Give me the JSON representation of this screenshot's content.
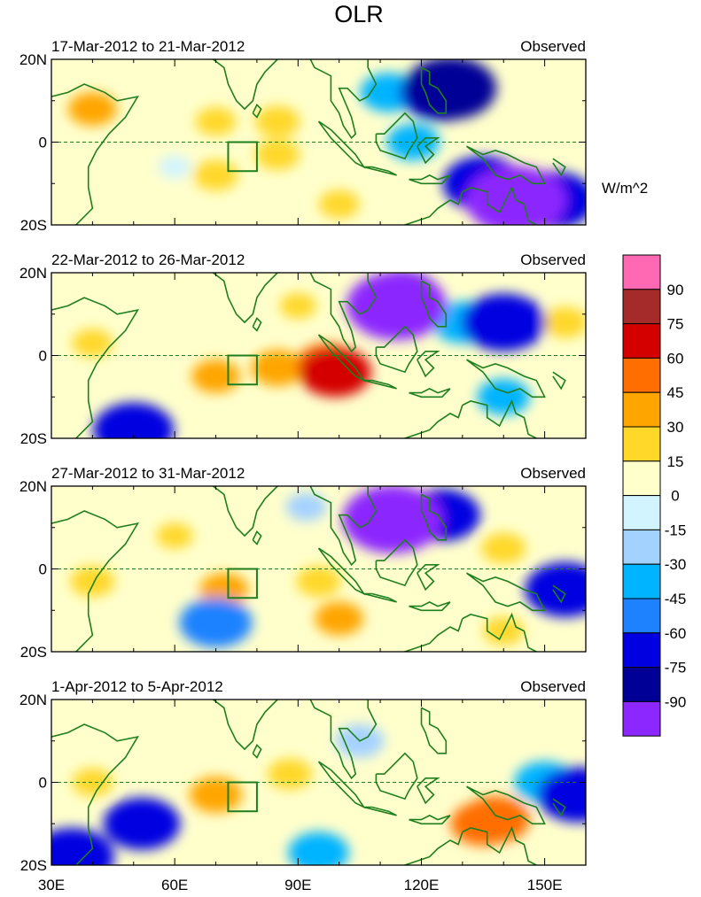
{
  "chart_data": {
    "type": "heatmap",
    "title": "OLR",
    "units": "W/m^2",
    "y_ticks": [
      "20N",
      "0",
      "20S"
    ],
    "x_ticks": [
      "30E",
      "60E",
      "90E",
      "120E",
      "150E"
    ],
    "lon_range": [
      30,
      160
    ],
    "lat_range": [
      -20,
      20
    ],
    "box_region": {
      "lon": [
        73,
        80
      ],
      "lat": [
        -7,
        0
      ]
    },
    "panels": [
      {
        "label": "17-Mar-2012 to 21-Mar-2012",
        "tag": "Observed",
        "anomalies": [
          {
            "lon": 40,
            "lat": 8,
            "value": 30
          },
          {
            "lon": 70,
            "lat": 5,
            "value": 20
          },
          {
            "lon": 85,
            "lat": 5,
            "value": 25
          },
          {
            "lon": 70,
            "lat": -8,
            "value": 25
          },
          {
            "lon": 85,
            "lat": -3,
            "value": 25
          },
          {
            "lon": 100,
            "lat": -15,
            "value": 20
          },
          {
            "lon": 60,
            "lat": -6,
            "value": -10
          },
          {
            "lon": 112,
            "lat": 12,
            "value": -40
          },
          {
            "lon": 125,
            "lat": 12,
            "value": -75
          },
          {
            "lon": 127,
            "lat": 13,
            "value": -85
          },
          {
            "lon": 118,
            "lat": 0,
            "value": -35
          },
          {
            "lon": 135,
            "lat": -10,
            "value": -70
          },
          {
            "lon": 143,
            "lat": -14,
            "value": -95
          },
          {
            "lon": 152,
            "lat": -14,
            "value": -75
          },
          {
            "lon": 150,
            "lat": 5,
            "value": 12
          }
        ]
      },
      {
        "label": "22-Mar-2012 to 26-Mar-2012",
        "tag": "Observed",
        "anomalies": [
          {
            "lon": 40,
            "lat": 3,
            "value": 20
          },
          {
            "lon": 70,
            "lat": -5,
            "value": 30
          },
          {
            "lon": 85,
            "lat": -3,
            "value": 35
          },
          {
            "lon": 97,
            "lat": -2,
            "value": 45
          },
          {
            "lon": 99,
            "lat": -4,
            "value": 60
          },
          {
            "lon": 90,
            "lat": 12,
            "value": 15
          },
          {
            "lon": 50,
            "lat": -18,
            "value": -70
          },
          {
            "lon": 115,
            "lat": 14,
            "value": -70
          },
          {
            "lon": 114,
            "lat": 12,
            "value": -95
          },
          {
            "lon": 130,
            "lat": 8,
            "value": -45
          },
          {
            "lon": 140,
            "lat": 8,
            "value": -75
          },
          {
            "lon": 140,
            "lat": -10,
            "value": -35
          },
          {
            "lon": 155,
            "lat": 8,
            "value": 25
          }
        ]
      },
      {
        "label": "27-Mar-2012 to 31-Mar-2012",
        "tag": "Observed",
        "anomalies": [
          {
            "lon": 40,
            "lat": -3,
            "value": 25
          },
          {
            "lon": 60,
            "lat": 8,
            "value": 15
          },
          {
            "lon": 72,
            "lat": -5,
            "value": 30
          },
          {
            "lon": 95,
            "lat": -3,
            "value": 25
          },
          {
            "lon": 100,
            "lat": -12,
            "value": 30
          },
          {
            "lon": 70,
            "lat": -13,
            "value": -60
          },
          {
            "lon": 92,
            "lat": 15,
            "value": -20
          },
          {
            "lon": 115,
            "lat": 12,
            "value": -70
          },
          {
            "lon": 113,
            "lat": 12,
            "value": -95
          },
          {
            "lon": 125,
            "lat": 13,
            "value": -65
          },
          {
            "lon": 140,
            "lat": 5,
            "value": 25
          },
          {
            "lon": 155,
            "lat": -5,
            "value": -70
          },
          {
            "lon": 140,
            "lat": -15,
            "value": 20
          }
        ]
      },
      {
        "label": "1-Apr-2012 to 5-Apr-2012",
        "tag": "Observed",
        "anomalies": [
          {
            "lon": 40,
            "lat": 0,
            "value": 20
          },
          {
            "lon": 70,
            "lat": -3,
            "value": 35
          },
          {
            "lon": 88,
            "lat": 2,
            "value": 25
          },
          {
            "lon": 52,
            "lat": -10,
            "value": -65
          },
          {
            "lon": 35,
            "lat": -18,
            "value": -75
          },
          {
            "lon": 95,
            "lat": -17,
            "value": -45
          },
          {
            "lon": 105,
            "lat": 10,
            "value": -30
          },
          {
            "lon": 135,
            "lat": -10,
            "value": 50
          },
          {
            "lon": 138,
            "lat": -9,
            "value": 55
          },
          {
            "lon": 150,
            "lat": 0,
            "value": -45
          },
          {
            "lon": 158,
            "lat": -3,
            "value": -70
          }
        ]
      }
    ],
    "colorbar": {
      "labels": [
        "90",
        "75",
        "60",
        "45",
        "30",
        "15",
        "0",
        "-15",
        "-30",
        "-45",
        "-60",
        "-75",
        "-90"
      ],
      "colors": [
        "#ff69b4",
        "#a52a2a",
        "#d40000",
        "#ff6e00",
        "#ffa500",
        "#ffd82a",
        "#ffffcc",
        "#d2f4ff",
        "#a4d2ff",
        "#00b4ff",
        "#1e82ff",
        "#0000e1",
        "#000096",
        "#8c28ff"
      ]
    }
  }
}
